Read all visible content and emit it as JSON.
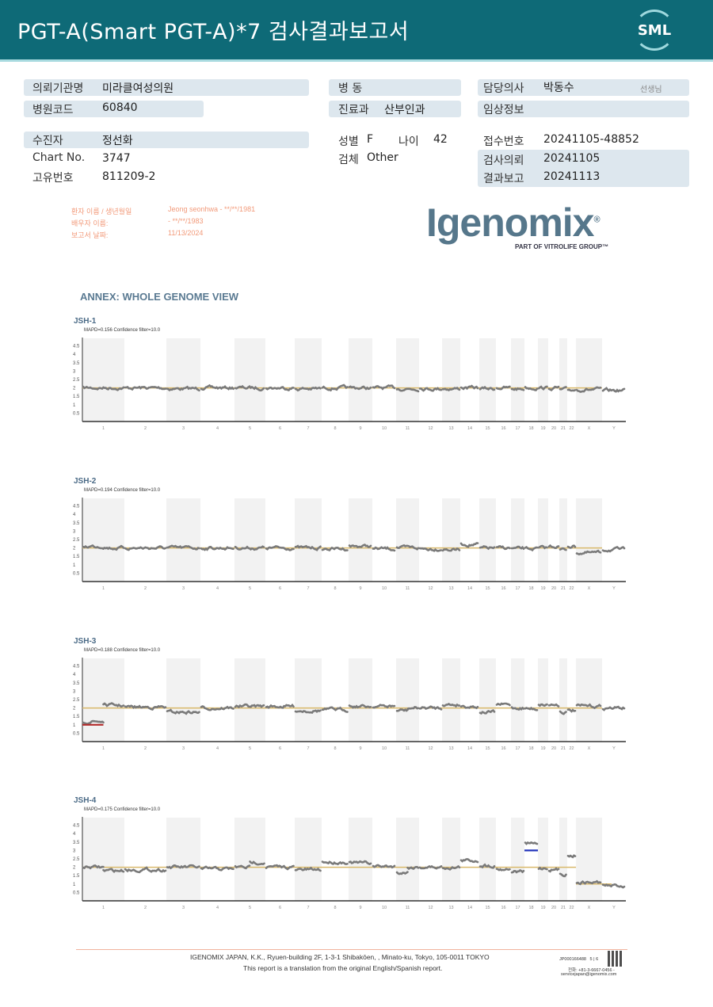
{
  "header": {
    "title": "PGT-A(Smart  PGT-A)*7 검사결과보고서",
    "logo": "SML"
  },
  "info": {
    "institution_label": "의뢰기관명",
    "institution": "미라클여성의원",
    "hospital_code_label": "병원코드",
    "hospital_code": "60840",
    "ward_label": "병 동",
    "ward": "",
    "dept_label": "진료과",
    "dept": "산부인과",
    "doctor_label": "담당의사",
    "doctor": "박동수",
    "doctor_suffix": "선생님",
    "clinical_label": "임상정보",
    "clinical": "",
    "patient_label": "수진자",
    "patient": "정선화",
    "chart_label": "Chart No.",
    "chart": "3747",
    "id_label": "고유번호",
    "id": "811209-2",
    "sex_label": "성별",
    "sex": "F",
    "age_label": "나이",
    "age": "42",
    "specimen_label": "검체",
    "specimen": "Other",
    "receipt_label": "접수번호",
    "receipt": "20241105-48852",
    "request_label": "검사의뢰",
    "request": "20241105",
    "report_label": "결과보고",
    "report": "20241113"
  },
  "patient_block": {
    "name_label": "환자 이름 / 생년월일",
    "name": "Jeong seonhwa - **/**/1981",
    "partner_label": "배우자 이름:",
    "partner": " - **/**/1983",
    "date_label": "보고서 날짜:",
    "date": "11/13/2024"
  },
  "brand": {
    "name": "Igenomix",
    "reg": "®",
    "sub": "PART OF VITROLIFE GROUP™"
  },
  "annex_title": "ANNEX: WHOLE GENOME VIEW",
  "chart_data": {
    "type": "scatter",
    "chromosomes": [
      "1",
      "2",
      "3",
      "4",
      "5",
      "6",
      "7",
      "8",
      "9",
      "10",
      "11",
      "12",
      "13",
      "14",
      "15",
      "16",
      "17",
      "18",
      "19",
      "20",
      "21",
      "22",
      "X",
      "Y"
    ],
    "yticks": [
      "0.5",
      "1",
      "1.5",
      "2",
      "2.5",
      "3",
      "3.5",
      "4",
      "4.5"
    ],
    "ylim": [
      0,
      4.9
    ],
    "colors": {
      "points": "#7a7a7a",
      "reference": "#d9b96a",
      "loss": "#b32a2a",
      "gain": "#2233bb",
      "band": "#f2f2f2"
    },
    "samples": [
      {
        "name": "JSH-1",
        "mapd": "MAPD=0.156 Confidence filter=10.0",
        "reference": 2,
        "values": [
          [
            2.0
          ],
          [
            2.0
          ],
          [
            1.95
          ],
          [
            2.0
          ],
          [
            2.0
          ],
          [
            2.0
          ],
          [
            1.95
          ],
          [
            2.0
          ],
          [
            2.0
          ],
          [
            2.0
          ],
          [
            1.95
          ],
          [
            1.95
          ],
          [
            1.95
          ],
          [
            2.0
          ],
          [
            1.95
          ],
          [
            2.0
          ],
          [
            1.95
          ],
          [
            2.0
          ],
          [
            2.0
          ],
          [
            2.0
          ],
          [
            1.9
          ],
          [
            1.9
          ],
          [
            1.9
          ],
          [
            1.85
          ]
        ],
        "calls": []
      },
      {
        "name": "JSH-2",
        "mapd": "MAPD=0.194 Confidence filter=10.0",
        "reference": 2,
        "values": [
          [
            2.1,
            2.0
          ],
          [
            2.0
          ],
          [
            2.0
          ],
          [
            2.0
          ],
          [
            2.0
          ],
          [
            2.0
          ],
          [
            2.0
          ],
          [
            1.95
          ],
          [
            2.1
          ],
          [
            1.95
          ],
          [
            2.0
          ],
          [
            1.95
          ],
          [
            1.9
          ],
          [
            2.2
          ],
          [
            2.0
          ],
          [
            2.0
          ],
          [
            1.95
          ],
          [
            1.95
          ],
          [
            2.0
          ],
          [
            2.1
          ],
          [
            1.9
          ],
          [
            2.1
          ],
          [
            1.7
          ],
          [
            1.9
          ]
        ],
        "calls": []
      },
      {
        "name": "JSH-3",
        "mapd": "MAPD=0.188 Confidence filter=10.0",
        "reference": 2,
        "values": [
          [
            1.2,
            2.15
          ],
          [
            2.05
          ],
          [
            1.75
          ],
          [
            2.0
          ],
          [
            2.1
          ],
          [
            2.1
          ],
          [
            1.85
          ],
          [
            1.9
          ],
          [
            2.1
          ],
          [
            2.1
          ],
          [
            1.85,
            2.0
          ],
          [
            2.0
          ],
          [
            2.2
          ],
          [
            2.1
          ],
          [
            1.75
          ],
          [
            2.2
          ],
          [
            2.0
          ],
          [
            1.95
          ],
          [
            2.2
          ],
          [
            2.2
          ],
          [
            1.75
          ],
          [
            1.85
          ],
          [
            2.1
          ],
          [
            2.0
          ]
        ],
        "calls": [
          {
            "chrom": "1",
            "part": [
              0,
              0.5
            ],
            "value": 1.0,
            "type": "loss"
          }
        ]
      },
      {
        "name": "JSH-4",
        "mapd": "MAPD=0.175 Confidence filter=10.0",
        "reference": 2,
        "reference_sex": 1,
        "values": [
          [
            2.0,
            1.8
          ],
          [
            1.85
          ],
          [
            2.0
          ],
          [
            1.9
          ],
          [
            2.0,
            2.3
          ],
          [
            2.0
          ],
          [
            1.85
          ],
          [
            2.3
          ],
          [
            2.25
          ],
          [
            2.05
          ],
          [
            1.7,
            2.0
          ],
          [
            2.0
          ],
          [
            2.0
          ],
          [
            2.4
          ],
          [
            2.1
          ],
          [
            1.9
          ],
          [
            1.75
          ],
          [
            3.4
          ],
          [
            1.95
          ],
          [
            1.85
          ],
          [
            1.6
          ],
          [
            2.7
          ],
          [
            1.1
          ],
          [
            0.9
          ]
        ],
        "calls": [
          {
            "chrom": "18",
            "part": [
              0,
              1
            ],
            "value": 3.0,
            "type": "gain"
          }
        ]
      }
    ]
  },
  "footer": {
    "address": "IGENOMIX JAPAN, K.K., Ryuen-building 2F, 1-3-1 Shibakōen, , Minato-ku, Tokyo, 105-0011 TOKYO",
    "note": "This report is a translation from the original English/Spanish report.",
    "doc_id": "JP000166488",
    "page": "5 | 6",
    "phone": "전화: +81-3-6667-0456 -",
    "email": "servicejapan@igenomix.com"
  }
}
